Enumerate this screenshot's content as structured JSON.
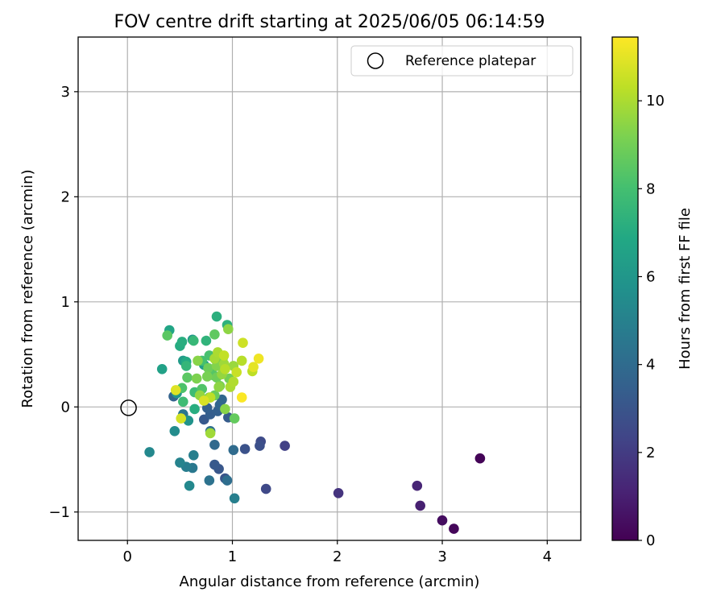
{
  "chart_data": {
    "type": "scatter",
    "title": "FOV centre drift starting at 2025/06/05 06:14:59",
    "xlabel": "Angular distance from reference (arcmin)",
    "ylabel": "Rotation from reference (arcmin)",
    "xlim": [
      -0.47,
      4.32
    ],
    "ylim": [
      -1.27,
      3.52
    ],
    "xticks": [
      0,
      1,
      2,
      3,
      4
    ],
    "yticks": [
      -1,
      0,
      1,
      2,
      3
    ],
    "grid": true,
    "legend": {
      "location": "upper right",
      "entries": [
        "Reference platepar"
      ]
    },
    "reference_point": {
      "x": 0,
      "y": 0,
      "label": "Reference platepar"
    },
    "colorbar": {
      "label": "Hours from first FF file",
      "colormap": "viridis",
      "range": [
        0,
        11.45
      ],
      "ticks": [
        0,
        2,
        4,
        6,
        8,
        10
      ]
    },
    "series": [
      {
        "points": [
          {
            "x": 3.36,
            "y": -0.49,
            "c": 0.1
          },
          {
            "x": 3.11,
            "y": -1.16,
            "c": 0.2
          },
          {
            "x": 3.0,
            "y": -1.08,
            "c": 0.4
          },
          {
            "x": 2.79,
            "y": -0.94,
            "c": 1.0
          },
          {
            "x": 2.76,
            "y": -0.75,
            "c": 1.2
          },
          {
            "x": 2.01,
            "y": -0.82,
            "c": 1.7
          },
          {
            "x": 1.5,
            "y": -0.37,
            "c": 2.2
          },
          {
            "x": 1.32,
            "y": -0.78,
            "c": 2.5
          },
          {
            "x": 1.27,
            "y": -0.33,
            "c": 2.6
          },
          {
            "x": 1.26,
            "y": -0.37,
            "c": 2.8
          },
          {
            "x": 1.12,
            "y": -0.4,
            "c": 2.9
          },
          {
            "x": 0.93,
            "y": -0.68,
            "c": 3.0
          },
          {
            "x": 0.87,
            "y": -0.59,
            "c": 3.1
          },
          {
            "x": 0.83,
            "y": -0.55,
            "c": 3.2
          },
          {
            "x": 0.73,
            "y": -0.12,
            "c": 3.2
          },
          {
            "x": 0.96,
            "y": -0.1,
            "c": 3.3
          },
          {
            "x": 0.79,
            "y": -0.07,
            "c": 3.4
          },
          {
            "x": 0.86,
            "y": -0.04,
            "c": 3.5
          },
          {
            "x": 0.76,
            "y": -0.01,
            "c": 3.5
          },
          {
            "x": 0.88,
            "y": 0.02,
            "c": 3.7
          },
          {
            "x": 0.44,
            "y": 0.1,
            "c": 3.6
          },
          {
            "x": 0.9,
            "y": 0.07,
            "c": 3.8
          },
          {
            "x": 0.83,
            "y": -0.36,
            "c": 3.9
          },
          {
            "x": 1.01,
            "y": -0.41,
            "c": 4.0
          },
          {
            "x": 0.95,
            "y": -0.7,
            "c": 4.1
          },
          {
            "x": 0.78,
            "y": -0.7,
            "c": 4.3
          },
          {
            "x": 0.79,
            "y": -0.23,
            "c": 4.2
          },
          {
            "x": 0.53,
            "y": -0.07,
            "c": 4.5
          },
          {
            "x": 0.62,
            "y": -0.58,
            "c": 4.6
          },
          {
            "x": 0.56,
            "y": -0.57,
            "c": 4.8
          },
          {
            "x": 0.63,
            "y": -0.46,
            "c": 4.9
          },
          {
            "x": 1.02,
            "y": -0.87,
            "c": 4.9
          },
          {
            "x": 0.5,
            "y": -0.53,
            "c": 5.1
          },
          {
            "x": 0.59,
            "y": -0.75,
            "c": 5.3
          },
          {
            "x": 0.21,
            "y": -0.43,
            "c": 5.3
          },
          {
            "x": 0.45,
            "y": -0.23,
            "c": 5.5
          },
          {
            "x": 0.58,
            "y": -0.13,
            "c": 5.8
          },
          {
            "x": 0.47,
            "y": 0.13,
            "c": 5.9
          },
          {
            "x": 0.62,
            "y": 0.64,
            "c": 6.0
          },
          {
            "x": 0.53,
            "y": 0.44,
            "c": 6.2
          },
          {
            "x": 0.73,
            "y": 0.4,
            "c": 6.3
          },
          {
            "x": 0.33,
            "y": 0.36,
            "c": 6.5
          },
          {
            "x": 0.4,
            "y": 0.73,
            "c": 6.7
          },
          {
            "x": 0.56,
            "y": 0.43,
            "c": 6.9
          },
          {
            "x": 0.5,
            "y": 0.58,
            "c": 7.0
          },
          {
            "x": 0.64,
            "y": -0.02,
            "c": 7.1
          },
          {
            "x": 0.52,
            "y": 0.62,
            "c": 7.1
          },
          {
            "x": 0.85,
            "y": 0.86,
            "c": 7.2
          },
          {
            "x": 0.95,
            "y": 0.78,
            "c": 7.3
          },
          {
            "x": 0.75,
            "y": 0.63,
            "c": 7.4
          },
          {
            "x": 0.56,
            "y": 0.39,
            "c": 7.5
          },
          {
            "x": 0.8,
            "y": 0.33,
            "c": 7.6
          },
          {
            "x": 0.63,
            "y": 0.63,
            "c": 7.6
          },
          {
            "x": 0.64,
            "y": 0.14,
            "c": 7.8
          },
          {
            "x": 0.53,
            "y": 0.05,
            "c": 7.8
          },
          {
            "x": 0.71,
            "y": 0.44,
            "c": 8.0
          },
          {
            "x": 0.78,
            "y": 0.49,
            "c": 8.1
          },
          {
            "x": 0.52,
            "y": 0.18,
            "c": 8.2
          },
          {
            "x": 0.84,
            "y": 0.45,
            "c": 8.3
          },
          {
            "x": 0.71,
            "y": 0.17,
            "c": 8.3
          },
          {
            "x": 0.82,
            "y": 0.3,
            "c": 8.4
          },
          {
            "x": 0.38,
            "y": 0.68,
            "c": 8.5
          },
          {
            "x": 0.57,
            "y": 0.28,
            "c": 8.5
          },
          {
            "x": 0.83,
            "y": 0.69,
            "c": 8.6
          },
          {
            "x": 0.78,
            "y": 0.09,
            "c": 8.6
          },
          {
            "x": 0.89,
            "y": 0.4,
            "c": 8.7
          },
          {
            "x": 1.02,
            "y": -0.11,
            "c": 8.7
          },
          {
            "x": 0.83,
            "y": 0.11,
            "c": 8.8
          },
          {
            "x": 0.77,
            "y": 0.37,
            "c": 8.9
          },
          {
            "x": 0.85,
            "y": 0.28,
            "c": 8.9
          },
          {
            "x": 0.97,
            "y": 0.27,
            "c": 9.0
          },
          {
            "x": 0.88,
            "y": 0.2,
            "c": 9.1
          },
          {
            "x": 0.76,
            "y": 0.29,
            "c": 9.1
          },
          {
            "x": 0.66,
            "y": 0.27,
            "c": 9.2
          },
          {
            "x": 0.91,
            "y": 0.47,
            "c": 9.2
          },
          {
            "x": 0.85,
            "y": 0.39,
            "c": 9.3
          },
          {
            "x": 0.93,
            "y": -0.02,
            "c": 9.4
          },
          {
            "x": 0.67,
            "y": 0.44,
            "c": 9.4
          },
          {
            "x": 0.96,
            "y": 0.74,
            "c": 9.5
          },
          {
            "x": 0.87,
            "y": 0.19,
            "c": 9.5
          },
          {
            "x": 0.69,
            "y": 0.11,
            "c": 9.6
          },
          {
            "x": 0.9,
            "y": 0.31,
            "c": 9.6
          },
          {
            "x": 1.01,
            "y": 0.39,
            "c": 9.7
          },
          {
            "x": 0.79,
            "y": -0.25,
            "c": 9.8
          },
          {
            "x": 0.92,
            "y": 0.41,
            "c": 9.8
          },
          {
            "x": 0.83,
            "y": 0.46,
            "c": 9.9
          },
          {
            "x": 0.98,
            "y": 0.19,
            "c": 10.0
          },
          {
            "x": 0.86,
            "y": 0.52,
            "c": 10.0
          },
          {
            "x": 1.01,
            "y": 0.24,
            "c": 10.1
          },
          {
            "x": 1.09,
            "y": 0.44,
            "c": 10.2
          },
          {
            "x": 0.93,
            "y": 0.36,
            "c": 10.2
          },
          {
            "x": 1.19,
            "y": 0.34,
            "c": 10.3
          },
          {
            "x": 0.79,
            "y": 0.09,
            "c": 10.3
          },
          {
            "x": 0.92,
            "y": 0.49,
            "c": 10.4
          },
          {
            "x": 1.04,
            "y": 0.33,
            "c": 10.5
          },
          {
            "x": 1.1,
            "y": 0.61,
            "c": 10.6
          },
          {
            "x": 0.51,
            "y": -0.11,
            "c": 10.7
          },
          {
            "x": 0.73,
            "y": 0.06,
            "c": 10.8
          },
          {
            "x": 0.46,
            "y": 0.16,
            "c": 10.9
          },
          {
            "x": 1.2,
            "y": 0.38,
            "c": 11.0
          },
          {
            "x": 1.25,
            "y": 0.46,
            "c": 11.2
          },
          {
            "x": 1.09,
            "y": 0.09,
            "c": 11.4
          }
        ]
      }
    ]
  }
}
